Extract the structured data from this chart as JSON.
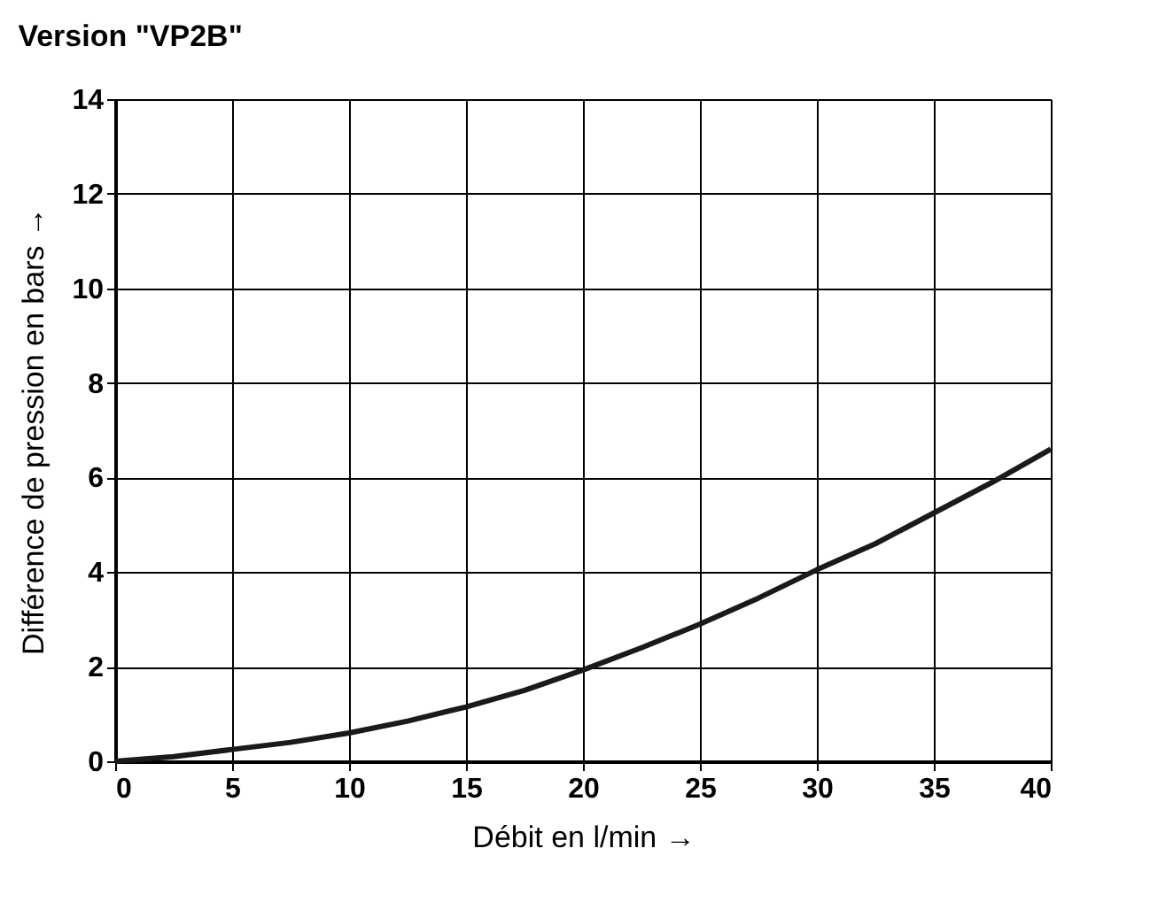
{
  "chart_data": {
    "type": "line",
    "title": "Version \"VP2B\"",
    "xlabel": "Débit en l/min →",
    "ylabel": "Différence de pression en bars →",
    "x": [
      0,
      2.5,
      5,
      7.5,
      10,
      12.5,
      15,
      17.5,
      20,
      22.5,
      25,
      27.5,
      30,
      32.5,
      35,
      37.5,
      40
    ],
    "series": [
      {
        "color": "#1a1a1a",
        "values": [
          0,
          0.1,
          0.25,
          0.4,
          0.6,
          0.85,
          1.15,
          1.5,
          1.93,
          2.4,
          2.9,
          3.45,
          4.05,
          4.6,
          5.25,
          5.9,
          6.6
        ]
      }
    ],
    "xlim": [
      0,
      40
    ],
    "xticks": [
      0,
      5,
      10,
      15,
      20,
      25,
      30,
      35,
      40
    ],
    "ylim": [
      0,
      14
    ],
    "yticks": [
      0,
      2,
      4,
      6,
      8,
      10,
      12,
      14
    ],
    "grid": true,
    "legend": false,
    "marker": "none",
    "line_style": "solid"
  }
}
